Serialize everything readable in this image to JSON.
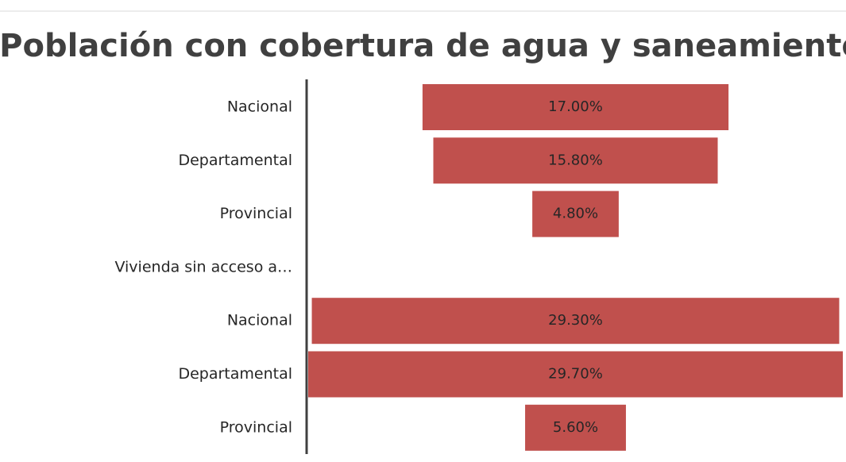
{
  "chart_data": {
    "type": "funnel",
    "title": "Población con cobertura de agua y saneamiento",
    "categories": [
      "Nacional",
      "Departamental",
      "Provincial",
      "Vivienda sin acceso a…",
      "Nacional",
      "Departamental",
      "Provincial"
    ],
    "values": [
      17.0,
      15.8,
      4.8,
      null,
      29.3,
      29.7,
      5.6
    ],
    "value_labels": [
      "17.00%",
      "15.80%",
      "4.80%",
      null,
      "29.30%",
      "29.70%",
      "5.60%"
    ],
    "color": "#c0504d"
  }
}
